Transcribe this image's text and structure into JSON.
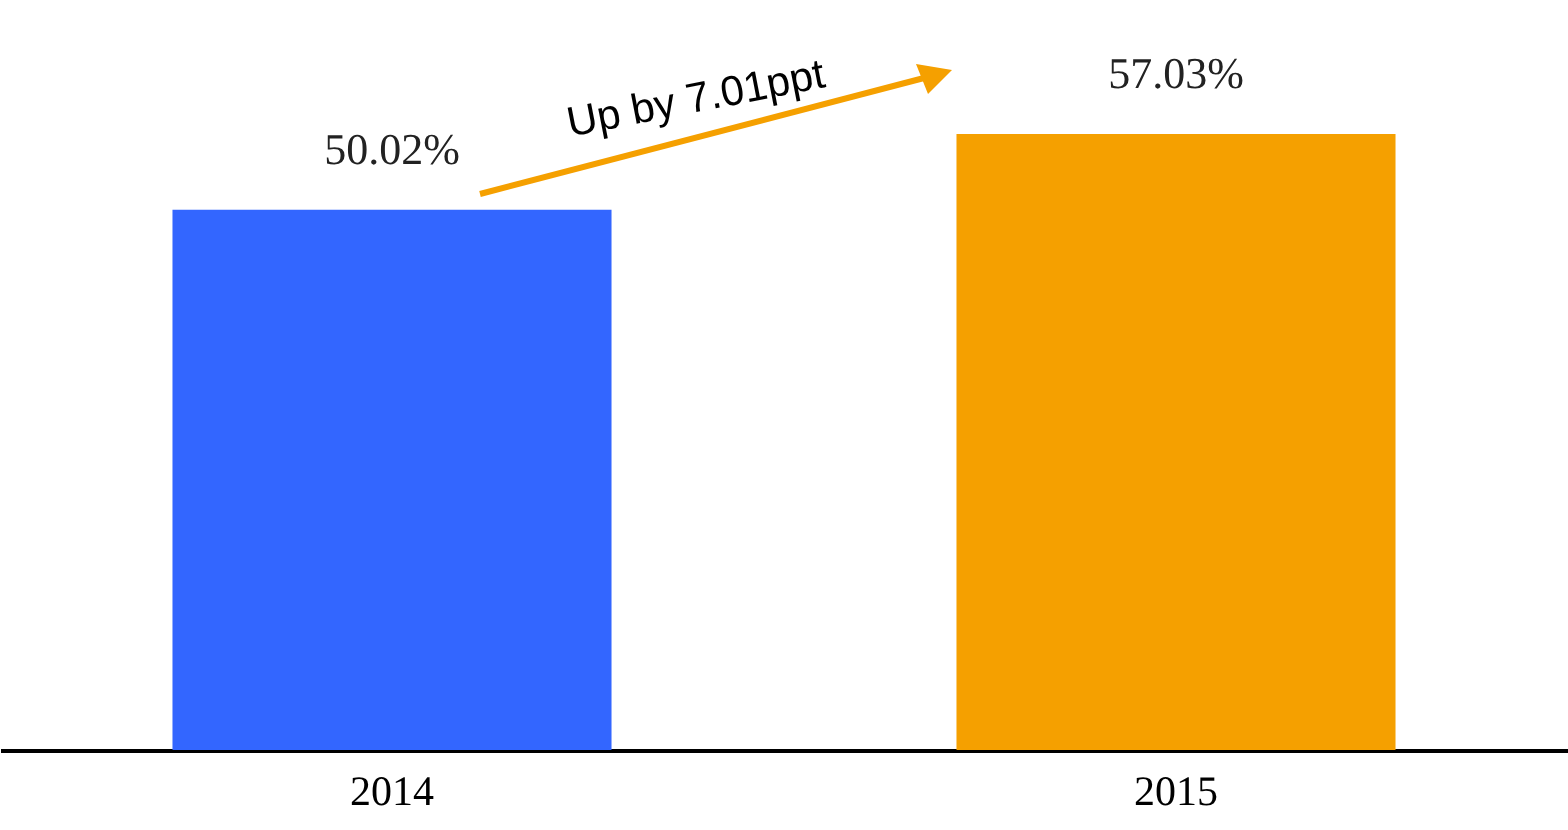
{
  "chart_data": {
    "type": "bar",
    "categories": [
      "2014",
      "2015"
    ],
    "values": [
      50.02,
      57.03
    ],
    "value_labels": [
      "50.02%",
      "57.03%"
    ],
    "colors": [
      "#3366ff",
      "#f5a000"
    ],
    "tick_labels": "x",
    "annotations": [
      "Up by 7.01ppt"
    ]
  }
}
